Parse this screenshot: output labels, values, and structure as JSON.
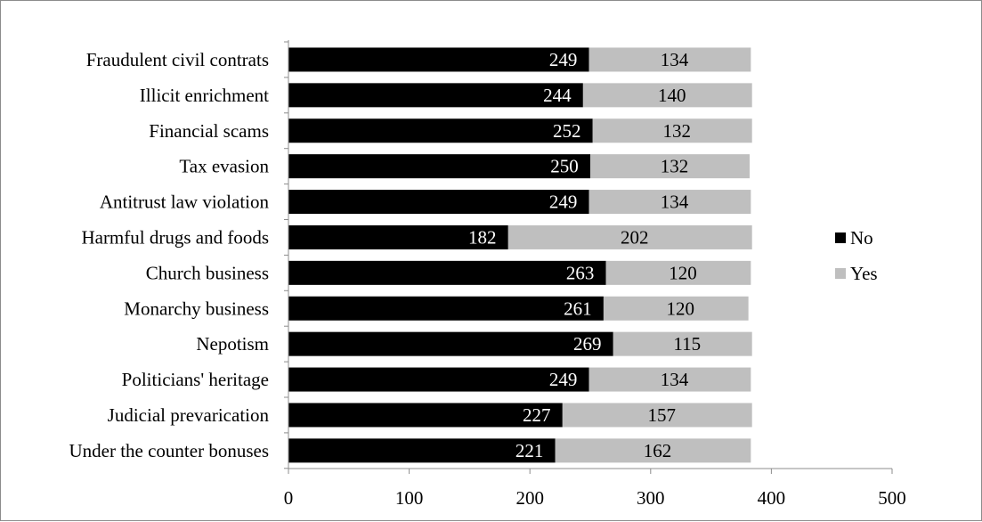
{
  "chart_data": {
    "type": "bar",
    "orientation": "horizontal",
    "stacked": true,
    "categories": [
      "Fraudulent civil contrats",
      "Illicit enrichment",
      "Financial scams",
      "Tax evasion",
      "Antitrust law violation",
      "Harmful drugs and foods",
      "Church business ",
      "Monarchy business",
      "Nepotism",
      "Politicians' heritage",
      "Judicial prevarication",
      "Under the counter bonuses"
    ],
    "series": [
      {
        "name": "No",
        "color": "#000000",
        "values": [
          249,
          244,
          252,
          250,
          249,
          182,
          263,
          261,
          269,
          249,
          227,
          221
        ]
      },
      {
        "name": "Yes",
        "color": "#bfbfbf",
        "values": [
          134,
          140,
          132,
          132,
          134,
          202,
          120,
          120,
          115,
          134,
          157,
          162
        ]
      }
    ],
    "xlim": [
      0,
      500
    ],
    "xticks": [
      0,
      100,
      200,
      300,
      400,
      500
    ],
    "grid": false,
    "legend_position": "right"
  }
}
